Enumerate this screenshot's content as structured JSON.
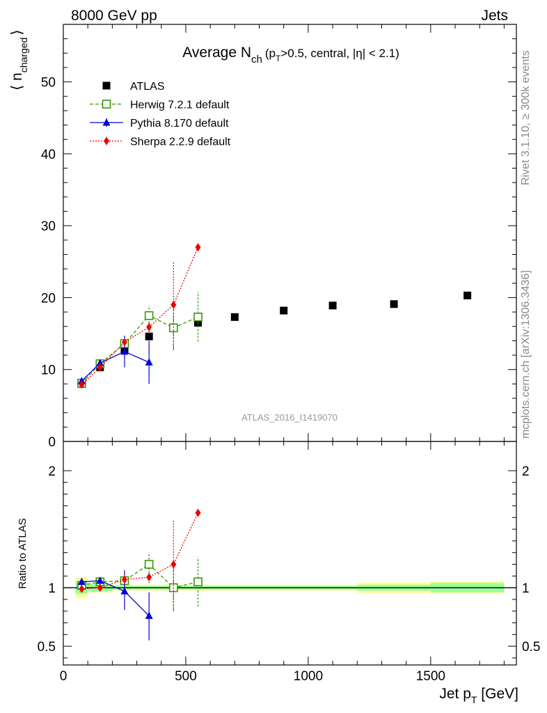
{
  "header": {
    "left": "8000 GeV pp",
    "right": "Jets"
  },
  "side_labels": {
    "rivet": "Rivet 3.1.10, ≥ 300k events",
    "mcplots": "mcplots.cern.ch [arXiv:1306.3436]"
  },
  "chart_data": [
    {
      "type": "scatter",
      "title": {
        "prefix": "Average N",
        "sub": "ch",
        "cut_open": "(p",
        "cut_sub": "T",
        "cut_rest": ">0.5, central, |η| < 2.1)"
      },
      "ylabel": {
        "main": "⟨ n",
        "sub": "charged",
        "close": "⟩"
      },
      "watermark": "ATLAS_2016_I1419070",
      "xlim": [
        0,
        1850
      ],
      "ylim": [
        0,
        58
      ],
      "yticks": [
        0,
        10,
        20,
        30,
        40,
        50
      ],
      "legend_position": "top-left",
      "series": [
        {
          "name": "ATLAS",
          "color": "#000000",
          "marker": "square-filled",
          "line": "none",
          "points": [
            {
              "x": 75,
              "y": 8.0
            },
            {
              "x": 150,
              "y": 10.3
            },
            {
              "x": 250,
              "y": 12.8
            },
            {
              "x": 350,
              "y": 14.6
            },
            {
              "x": 450,
              "y": 15.8
            },
            {
              "x": 550,
              "y": 16.5
            },
            {
              "x": 700,
              "y": 17.3
            },
            {
              "x": 900,
              "y": 18.2
            },
            {
              "x": 1100,
              "y": 18.9
            },
            {
              "x": 1350,
              "y": 19.1
            },
            {
              "x": 1650,
              "y": 20.3
            }
          ]
        },
        {
          "name": "Herwig 7.2.1 default",
          "color": "#339900",
          "marker": "square-open",
          "line": "dashed",
          "points": [
            {
              "x": 75,
              "y": 8.1,
              "lo": 7.9,
              "hi": 8.3
            },
            {
              "x": 150,
              "y": 10.8,
              "lo": 10.6,
              "hi": 11.0
            },
            {
              "x": 250,
              "y": 13.6,
              "lo": 13.1,
              "hi": 14.1
            },
            {
              "x": 350,
              "y": 17.5,
              "lo": 16.4,
              "hi": 18.9
            },
            {
              "x": 450,
              "y": 15.8,
              "lo": 12.8,
              "hi": 19.1
            },
            {
              "x": 550,
              "y": 17.3,
              "lo": 13.9,
              "hi": 20.8
            }
          ]
        },
        {
          "name": "Pythia 8.170 default",
          "color": "#0000dd",
          "marker": "triangle",
          "line": "solid",
          "points": [
            {
              "x": 75,
              "y": 8.4,
              "lo": 8.2,
              "hi": 8.6
            },
            {
              "x": 150,
              "y": 10.9,
              "lo": 10.6,
              "hi": 11.2
            },
            {
              "x": 250,
              "y": 12.5,
              "lo": 10.3,
              "hi": 14.7
            },
            {
              "x": 350,
              "y": 11.0,
              "lo": 8.0,
              "hi": 14.0
            }
          ]
        },
        {
          "name": "Sherpa 2.2.9 default",
          "color": "#ee0000",
          "marker": "diamond",
          "line": "dotted",
          "points": [
            {
              "x": 75,
              "y": 7.9,
              "lo": 7.7,
              "hi": 8.1
            },
            {
              "x": 150,
              "y": 10.3,
              "lo": 10.1,
              "hi": 10.5
            },
            {
              "x": 250,
              "y": 13.8,
              "lo": 13.3,
              "hi": 14.3
            },
            {
              "x": 350,
              "y": 15.9,
              "lo": 15.2,
              "hi": 16.6
            },
            {
              "x": 450,
              "y": 19.0,
              "lo": 12.7,
              "hi": 25.0
            },
            {
              "x": 550,
              "y": 27.0,
              "lo": 26.7,
              "hi": 27.3
            }
          ]
        }
      ]
    },
    {
      "type": "scatter",
      "ylabel": "Ratio to ATLAS",
      "xlabel": {
        "main": "Jet p",
        "sub": "T",
        "unit": " [GeV]"
      },
      "xlim": [
        0,
        1850
      ],
      "ylim": [
        0.34,
        2.25
      ],
      "yticks": [
        {
          "value": 0.5,
          "label": "0.5"
        },
        {
          "value": 1,
          "label": "1"
        },
        {
          "value": 2,
          "label": "2"
        }
      ],
      "xticks": [
        {
          "value": 0,
          "label": "0"
        },
        {
          "value": 500,
          "label": "500"
        },
        {
          "value": 1000,
          "label": "1000"
        },
        {
          "value": 1500,
          "label": "1500"
        }
      ],
      "reference_line": 1,
      "bands": [
        {
          "x0": 50,
          "x1": 100,
          "green": [
            0.95,
            1.05
          ],
          "yellow": [
            0.91,
            1.09
          ]
        },
        {
          "x0": 100,
          "x1": 200,
          "green": [
            0.97,
            1.03
          ],
          "yellow": [
            0.96,
            1.04
          ]
        },
        {
          "x0": 200,
          "x1": 300,
          "green": [
            0.985,
            1.015
          ],
          "yellow": [
            0.975,
            1.025
          ]
        },
        {
          "x0": 300,
          "x1": 400,
          "green": [
            0.985,
            1.015
          ],
          "yellow": [
            0.975,
            1.025
          ]
        },
        {
          "x0": 400,
          "x1": 500,
          "green": [
            0.985,
            1.015
          ],
          "yellow": [
            0.975,
            1.025
          ]
        },
        {
          "x0": 500,
          "x1": 600,
          "green": [
            0.985,
            1.015
          ],
          "yellow": [
            0.975,
            1.025
          ]
        },
        {
          "x0": 600,
          "x1": 800,
          "green": [
            0.985,
            1.015
          ],
          "yellow": [
            0.975,
            1.025
          ]
        },
        {
          "x0": 800,
          "x1": 1000,
          "green": [
            0.985,
            1.015
          ],
          "yellow": [
            0.975,
            1.025
          ]
        },
        {
          "x0": 1000,
          "x1": 1200,
          "green": [
            0.985,
            1.015
          ],
          "yellow": [
            0.975,
            1.025
          ]
        },
        {
          "x0": 1200,
          "x1": 1500,
          "green": [
            0.975,
            1.025
          ],
          "yellow": [
            0.955,
            1.045
          ]
        },
        {
          "x0": 1500,
          "x1": 1800,
          "green": [
            0.96,
            1.04
          ],
          "yellow": [
            0.95,
            1.055
          ]
        }
      ],
      "series": [
        {
          "name": "Herwig 7.2.1 default",
          "color": "#339900",
          "marker": "square-open",
          "line": "dashed",
          "points": [
            {
              "x": 75,
              "y": 1.02,
              "lo": 0.99,
              "hi": 1.05
            },
            {
              "x": 150,
              "y": 1.05,
              "lo": 1.03,
              "hi": 1.07
            },
            {
              "x": 250,
              "y": 1.06,
              "lo": 1.02,
              "hi": 1.1
            },
            {
              "x": 350,
              "y": 1.2,
              "lo": 1.12,
              "hi": 1.3
            },
            {
              "x": 450,
              "y": 1.0,
              "lo": 0.81,
              "hi": 1.21
            },
            {
              "x": 550,
              "y": 1.05,
              "lo": 0.84,
              "hi": 1.26
            }
          ]
        },
        {
          "name": "Pythia 8.170 default",
          "color": "#0000dd",
          "marker": "triangle",
          "line": "solid",
          "points": [
            {
              "x": 75,
              "y": 1.05,
              "lo": 1.02,
              "hi": 1.08
            },
            {
              "x": 150,
              "y": 1.06,
              "lo": 1.03,
              "hi": 1.09
            },
            {
              "x": 250,
              "y": 0.97,
              "lo": 0.81,
              "hi": 1.15
            },
            {
              "x": 350,
              "y": 0.76,
              "lo": 0.55,
              "hi": 0.96
            }
          ]
        },
        {
          "name": "Sherpa 2.2.9 default",
          "color": "#ee0000",
          "marker": "diamond",
          "line": "dotted",
          "points": [
            {
              "x": 75,
              "y": 0.99,
              "lo": 0.97,
              "hi": 1.01
            },
            {
              "x": 150,
              "y": 1.0,
              "lo": 0.98,
              "hi": 1.02
            },
            {
              "x": 250,
              "y": 1.07,
              "lo": 1.03,
              "hi": 1.11
            },
            {
              "x": 350,
              "y": 1.09,
              "lo": 1.04,
              "hi": 1.14
            },
            {
              "x": 450,
              "y": 1.2,
              "lo": 0.8,
              "hi": 1.58
            },
            {
              "x": 550,
              "y": 1.64,
              "lo": 1.62,
              "hi": 1.66
            }
          ]
        }
      ]
    }
  ]
}
